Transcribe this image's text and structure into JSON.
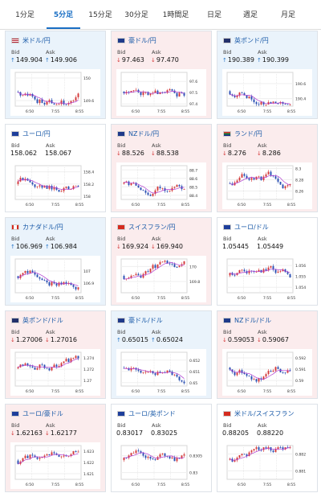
{
  "tabs": [
    {
      "label": "1分足",
      "active": false
    },
    {
      "label": "5分足",
      "active": true
    },
    {
      "label": "15分足",
      "active": false
    },
    {
      "label": "30分足",
      "active": false
    },
    {
      "label": "1時間足",
      "active": false
    },
    {
      "label": "日足",
      "active": false
    },
    {
      "label": "週足",
      "active": false
    },
    {
      "label": "月足",
      "active": false
    }
  ],
  "bid_label": "Bid",
  "ask_label": "Ask",
  "colors": {
    "up_arrow": "#2a79c9",
    "down_arrow": "#d43a3a",
    "up_card": "#eaf3fb",
    "down_card": "#fbeced",
    "active_tab": "#1a6fc4"
  },
  "cards": [
    {
      "pair": "米ドル/円",
      "flag": "us-flag",
      "dir": "up",
      "bid": "149.904",
      "ask": "149.906",
      "chart": {
        "x_labels": [
          "6:50",
          "7:55",
          "8:55"
        ],
        "y_ticks": [
          "150",
          "149.6"
        ],
        "ylim": [
          149.5,
          150.1
        ]
      }
    },
    {
      "pair": "豪ドル/円",
      "flag": "au-flag",
      "dir": "down",
      "bid": "97.463",
      "ask": "97.470",
      "chart": {
        "x_labels": [
          "6:50",
          "7:55",
          "8:55"
        ],
        "y_ticks": [
          "97.6",
          "97.5",
          "97.4"
        ],
        "ylim": [
          97.38,
          97.68
        ]
      }
    },
    {
      "pair": "英ポンド/円",
      "flag": "gb-flag",
      "dir": "up",
      "bid": "190.389",
      "ask": "190.399",
      "chart": {
        "x_labels": [
          "6:50",
          "7:55",
          "8:55"
        ],
        "y_ticks": [
          "190.6",
          "190.4"
        ],
        "ylim": [
          190.3,
          190.75
        ]
      }
    },
    {
      "pair": "ユーロ/円",
      "flag": "eu-flag",
      "dir": "none",
      "bid": "158.062",
      "ask": "158.067",
      "chart": {
        "x_labels": [
          "6:50",
          "7:55",
          "8:55"
        ],
        "y_ticks": [
          "158.4",
          "158.2",
          "158"
        ],
        "ylim": [
          157.95,
          158.5
        ]
      }
    },
    {
      "pair": "NZドル/円",
      "flag": "nz-flag",
      "dir": "down",
      "bid": "88.526",
      "ask": "88.538",
      "chart": {
        "x_labels": [
          "6:50",
          "7:55",
          "8:55"
        ],
        "y_ticks": [
          "88.7",
          "88.6",
          "88.5",
          "88.4"
        ],
        "ylim": [
          88.35,
          88.75
        ]
      }
    },
    {
      "pair": "ランド/円",
      "flag": "za-flag",
      "dir": "down",
      "bid": "8.276",
      "ask": "8.286",
      "chart": {
        "x_labels": [
          "6:50",
          "7:55",
          "8:55"
        ],
        "y_ticks": [
          "8.3",
          "8.28",
          "8.26"
        ],
        "ylim": [
          8.245,
          8.305
        ]
      }
    },
    {
      "pair": "カナダドル/円",
      "flag": "ca-flag",
      "dir": "up",
      "bid": "106.969",
      "ask": "106.984",
      "chart": {
        "x_labels": [
          "6:50",
          "7:55",
          "8:55"
        ],
        "y_ticks": [
          "107",
          "106.9"
        ],
        "ylim": [
          106.82,
          107.1
        ]
      }
    },
    {
      "pair": "スイスフラン/円",
      "flag": "ch-flag",
      "dir": "down",
      "bid": "169.924",
      "ask": "169.940",
      "chart": {
        "x_labels": [
          "6:50",
          "7:55",
          "8:55"
        ],
        "y_ticks": [
          "170",
          "169.8"
        ],
        "ylim": [
          169.65,
          170.1
        ]
      }
    },
    {
      "pair": "ユーロ/ドル",
      "flag": "eu-flag",
      "dir": "none",
      "bid": "1.05445",
      "ask": "1.05449",
      "chart": {
        "x_labels": [
          "6:50",
          "7:55",
          "8:55"
        ],
        "y_ticks": [
          "1.056",
          "1.055",
          "1.054"
        ],
        "ylim": [
          1.0535,
          1.0566
        ]
      }
    },
    {
      "pair": "英ポンド/ドル",
      "flag": "gb-flag",
      "dir": "down",
      "bid": "1.27006",
      "ask": "1.27016",
      "chart": {
        "x_labels": [
          "6:50",
          "7:55",
          "8:55"
        ],
        "y_ticks": [
          "1.274",
          "1.272",
          "1.27"
        ],
        "ylim": [
          1.269,
          1.275
        ]
      }
    },
    {
      "pair": "豪ドル/ドル",
      "flag": "au-flag",
      "dir": "up",
      "bid": "0.65015",
      "ask": "0.65024",
      "chart": {
        "x_labels": [
          "6:50",
          "7:55",
          "8:55"
        ],
        "y_ticks": [
          "0.652",
          "0.651",
          "0.65"
        ],
        "ylim": [
          0.6497,
          0.6527
        ]
      }
    },
    {
      "pair": "NZドル/ドル",
      "flag": "nz-flag",
      "dir": "down",
      "bid": "0.59053",
      "ask": "0.59067",
      "chart": {
        "x_labels": [
          "6:50",
          "7:55",
          "8:55"
        ],
        "y_ticks": [
          "0.592",
          "0.591",
          "0.59"
        ],
        "ylim": [
          0.5895,
          0.5925
        ]
      }
    },
    {
      "pair": "ユーロ/豪ドル",
      "flag": "eu-flag",
      "dir": "down",
      "bid": "1.62163",
      "ask": "1.62177",
      "chart": {
        "x_labels": [
          "6:50",
          "7:55",
          "8:55"
        ],
        "y_ticks": [
          "1.623",
          "1.622",
          "1.621"
        ],
        "ylim": [
          1.6205,
          1.6235
        ]
      }
    },
    {
      "pair": "ユーロ/英ポンド",
      "flag": "eu-flag",
      "dir": "none",
      "bid": "0.83017",
      "ask": "0.83025",
      "chart": {
        "x_labels": [
          "6:50",
          "7:55",
          "8:55"
        ],
        "y_ticks": [
          "0.8305",
          "0.83"
        ],
        "ylim": [
          0.8298,
          0.8308
        ]
      }
    },
    {
      "pair": "米ドル/スイスフラン",
      "flag": "ch-flag",
      "dir": "none",
      "bid": "0.88205",
      "ask": "0.88220",
      "chart": {
        "x_labels": [
          "6:50",
          "7:55",
          "8:55"
        ],
        "y_ticks": [
          "0.882",
          "0.881"
        ],
        "ylim": [
          0.8805,
          0.8825
        ]
      }
    }
  ]
}
